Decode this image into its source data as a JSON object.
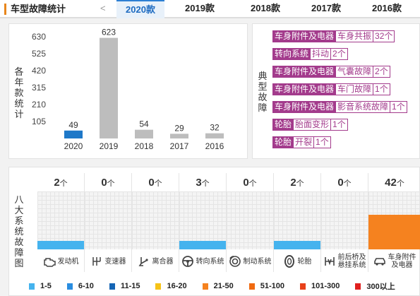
{
  "header": {
    "title": "车型故障统计",
    "prev_icon": "chevron-left-icon",
    "prev_glyph": "<",
    "tabs": [
      {
        "label": "2020款",
        "active": true
      },
      {
        "label": "2019款",
        "active": false
      },
      {
        "label": "2018款",
        "active": false
      },
      {
        "label": "2017款",
        "active": false
      },
      {
        "label": "2016款",
        "active": false
      }
    ]
  },
  "yearly": {
    "side_label": "各年款统计",
    "chart_data": {
      "type": "bar",
      "categories": [
        "2020",
        "2019",
        "2018",
        "2017",
        "2016"
      ],
      "values": [
        49,
        623,
        54,
        29,
        32
      ],
      "yticks": [
        105,
        210,
        315,
        420,
        525,
        630
      ],
      "ylim": [
        0,
        630
      ],
      "colors": [
        "#1e78c8",
        "#bdbdbd",
        "#bdbdbd",
        "#bdbdbd",
        "#bdbdbd"
      ]
    }
  },
  "typical": {
    "side_label": "典型故障",
    "items": [
      {
        "category": "车身附件及电器",
        "fault": "车身共振",
        "count": "32个"
      },
      {
        "category": "转向系统",
        "fault": "抖动",
        "count": "2个"
      },
      {
        "category": "车身附件及电器",
        "fault": "气囊故障",
        "count": "2个"
      },
      {
        "category": "车身附件及电器",
        "fault": "车门故障",
        "count": "1个"
      },
      {
        "category": "车身附件及电器",
        "fault": "影音系统故障",
        "count": "1个"
      },
      {
        "category": "轮胎",
        "fault": "胎面变形",
        "count": "1个"
      },
      {
        "category": "轮胎",
        "fault": "开裂",
        "count": "1个"
      }
    ]
  },
  "systems": {
    "side_label": "八大系统故障图",
    "unit": "个",
    "columns": [
      {
        "count": "2",
        "level": 0.15,
        "color": "#45b3ee",
        "label": "发动机",
        "icon": "engine-icon"
      },
      {
        "count": "0",
        "level": 0,
        "color": "#45b3ee",
        "label": "变速器",
        "icon": "gear-shift-icon"
      },
      {
        "count": "0",
        "level": 0,
        "color": "#45b3ee",
        "label": "离合器",
        "icon": "clutch-pedal-icon"
      },
      {
        "count": "3",
        "level": 0.15,
        "color": "#45b3ee",
        "label": "转向系统",
        "icon": "steering-wheel-icon"
      },
      {
        "count": "0",
        "level": 0,
        "color": "#45b3ee",
        "label": "制动系统",
        "icon": "brake-disc-icon"
      },
      {
        "count": "2",
        "level": 0.15,
        "color": "#45b3ee",
        "label": "轮胎",
        "icon": "tire-icon"
      },
      {
        "count": "0",
        "level": 0,
        "color": "#45b3ee",
        "label": "前后桥及悬挂系统",
        "label_line1": "前后桥及",
        "label_line2": "悬挂系统",
        "icon": "suspension-icon"
      },
      {
        "count": "42",
        "level": 0.6,
        "color": "#f5821f",
        "label": "车身附件及电器",
        "label_line1": "车身附件",
        "label_line2": "及电器",
        "icon": "car-body-icon"
      }
    ],
    "legend": [
      {
        "label": "1-5",
        "color": "#45b3ee"
      },
      {
        "label": "6-10",
        "color": "#2a8de0"
      },
      {
        "label": "11-15",
        "color": "#1565b5"
      },
      {
        "label": "16-20",
        "color": "#f6c318"
      },
      {
        "label": "21-50",
        "color": "#f5821f"
      },
      {
        "label": "51-100",
        "color": "#f06a10"
      },
      {
        "label": "101-300",
        "color": "#e8411a"
      },
      {
        "label": "300以上",
        "color": "#e0201e"
      }
    ]
  }
}
